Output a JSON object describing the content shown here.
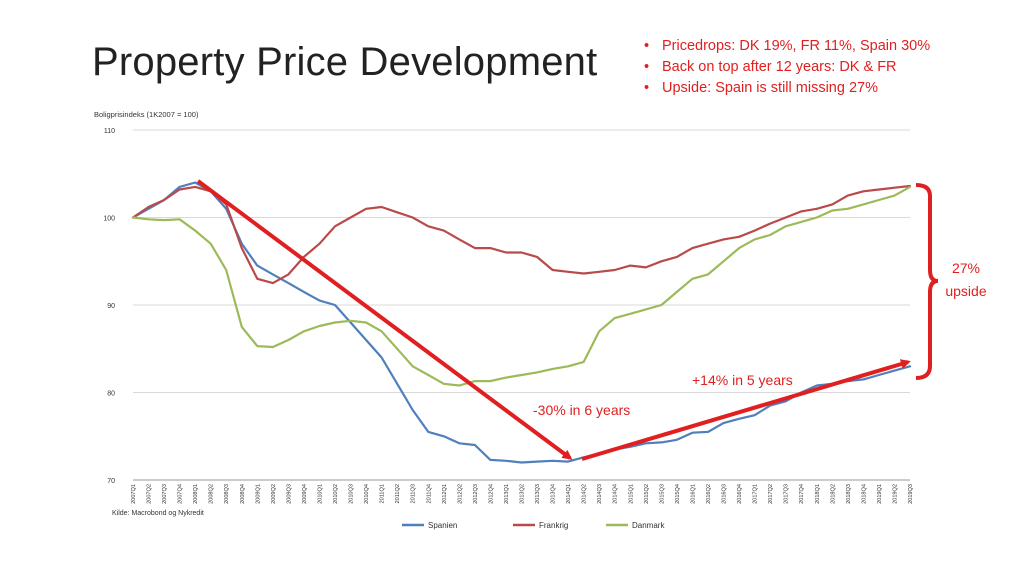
{
  "slide": {
    "title": "Property Price Development",
    "bullets": [
      "Pricedrops: DK 19%, FR 11%, Spain 30%",
      "Back on top after 12 years: DK & FR",
      "Upside: Spain is still missing 27%"
    ],
    "accent_color": "#e02020"
  },
  "chart_data": {
    "type": "line",
    "ylabel": "Boligprisindeks (1K2007 = 100)",
    "source": "Kilde: Macrobond og Nykredit",
    "ylim": [
      70,
      110
    ],
    "yticks": [
      70,
      80,
      90,
      100,
      110
    ],
    "grid": true,
    "legend_position": "bottom-center",
    "categories": [
      "2007Q1",
      "2007Q2",
      "2007Q3",
      "2007Q4",
      "2008Q1",
      "2008Q2",
      "2008Q3",
      "2008Q4",
      "2009Q1",
      "2009Q2",
      "2009Q3",
      "2009Q4",
      "2010Q1",
      "2010Q2",
      "2010Q3",
      "2010Q4",
      "2011Q1",
      "2011Q2",
      "2011Q3",
      "2011Q4",
      "2012Q1",
      "2012Q2",
      "2012Q3",
      "2012Q4",
      "2013Q1",
      "2013Q2",
      "2013Q3",
      "2013Q4",
      "2014Q1",
      "2014Q2",
      "2014Q3",
      "2014Q4",
      "2015Q1",
      "2015Q2",
      "2015Q3",
      "2015Q4",
      "2016Q1",
      "2016Q2",
      "2016Q3",
      "2016Q4",
      "2017Q1",
      "2017Q2",
      "2017Q3",
      "2017Q4",
      "2018Q1",
      "2018Q2",
      "2018Q3",
      "2018Q4",
      "2019Q1",
      "2019Q2",
      "2019Q3"
    ],
    "series": [
      {
        "name": "Spanien",
        "color": "#4f7fbc",
        "values": [
          100,
          101,
          102,
          103.5,
          104,
          103,
          101,
          97,
          94.5,
          93.5,
          92.5,
          91.5,
          90.5,
          90,
          88,
          86,
          84,
          81,
          78,
          75.5,
          75,
          74.2,
          74,
          72.3,
          72.2,
          72,
          72.1,
          72.2,
          72.1,
          72.6,
          73,
          73.5,
          73.8,
          74.2,
          74.3,
          74.6,
          75.4,
          75.5,
          76.5,
          77,
          77.4,
          78.5,
          79,
          80,
          80.8,
          81,
          81.3,
          81.5,
          82,
          82.5,
          83
        ]
      },
      {
        "name": "Frankrig",
        "color": "#b94a4a",
        "values": [
          100,
          101.2,
          102,
          103.2,
          103.5,
          103,
          101.5,
          96.5,
          93,
          92.5,
          93.5,
          95.5,
          97,
          99,
          100,
          101,
          101.2,
          100.6,
          100,
          99,
          98.5,
          97.5,
          96.5,
          96.5,
          96,
          96,
          95.5,
          94,
          93.8,
          93.6,
          93.8,
          94,
          94.5,
          94.3,
          95,
          95.5,
          96.5,
          97,
          97.5,
          97.8,
          98.5,
          99.3,
          100,
          100.7,
          101,
          101.5,
          102.5,
          103,
          103.2,
          103.4,
          103.6
        ]
      },
      {
        "name": "Danmark",
        "color": "#9cba59",
        "values": [
          100,
          99.8,
          99.7,
          99.8,
          98.5,
          97,
          94,
          87.5,
          85.3,
          85.2,
          86,
          87,
          87.6,
          88,
          88.2,
          88,
          87,
          85,
          83,
          82,
          81,
          80.8,
          81.3,
          81.3,
          81.7,
          82,
          82.3,
          82.7,
          83,
          83.5,
          87,
          88.5,
          89,
          89.5,
          90,
          91.5,
          93,
          93.5,
          95,
          96.5,
          97.5,
          98,
          99,
          99.5,
          100,
          100.8,
          101,
          101.5,
          102,
          102.5,
          103.5
        ]
      }
    ],
    "annotations": {
      "drop_label": "-30% in 6 years",
      "rise_label": "+14% in 5 years",
      "upside_label_line1": "27%",
      "upside_label_line2": "upside"
    }
  }
}
